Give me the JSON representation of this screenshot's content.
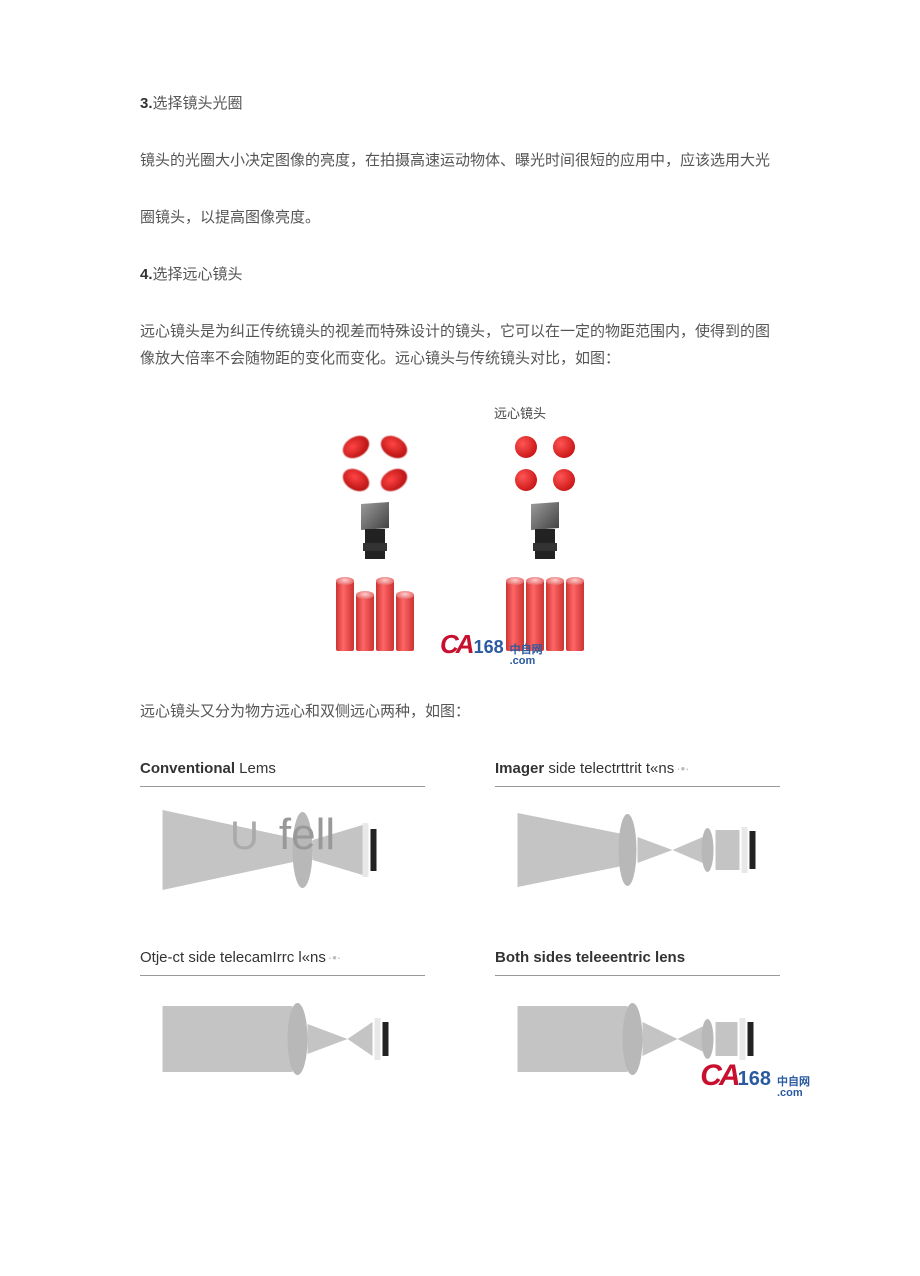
{
  "section3": {
    "num": "3.",
    "title": "选择镜头光圈",
    "para1": "镜头的光圈大小决定图像的亮度，在拍摄高速运动物体、曝光时间很短的应用中，应该选用大光",
    "para2": "圈镜头，以提高图像亮度。"
  },
  "section4": {
    "num": "4.",
    "title": "选择远心镜头",
    "para": "远心镜头是为纠正传统镜头的视差而特殊设计的镜头，它可以在一定的物距范围内，使得到的图 像放大倍率不会随物距的变化而变化。远心镜头与传统镜头对比，如图："
  },
  "figure1": {
    "label_telecentric": "远心镜头",
    "colors": {
      "dot_red": "#c8102e",
      "cyl_red": "#cc3333"
    },
    "cylinder_heights_left": [
      70,
      56,
      70,
      56
    ],
    "cylinder_heights_right": [
      70,
      70,
      70,
      70
    ]
  },
  "caption_mid": "远心镜头又分为物方远心和双侧远心两种，如图：",
  "figure2": {
    "blocks": [
      {
        "title_bold": "Conventional",
        "title_rest": " Lems",
        "gray": ""
      },
      {
        "title_bold": "Imager ",
        "title_rest": "side telectrttrit t«ns",
        "gray": "·•·"
      },
      {
        "title_bold": "",
        "title_rest": "Otje-ct side telecamIrrc l«ns",
        "gray": "·•·"
      },
      {
        "title_bold": "Both sides teleeentric lens",
        "title_rest": "",
        "gray": ""
      }
    ],
    "overlay_u": "U",
    "overlay_text": "fell",
    "svg_colors": {
      "fill": "#c4c4c4",
      "lens": "#b8b8b8",
      "sensor": "#222222",
      "sensor_bg": "#e8e8e8"
    }
  },
  "watermark": {
    "brand_red": "CA",
    "brand_blue": "168",
    "suffix": ".com",
    "cn": "中自网"
  }
}
